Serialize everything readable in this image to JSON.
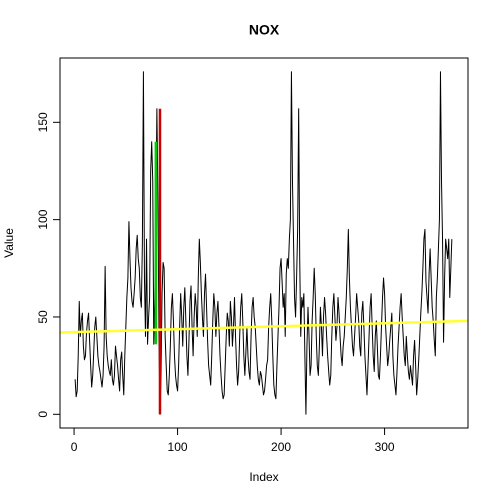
{
  "chart_data": {
    "type": "line",
    "title": "NOX",
    "x_label": "Index",
    "y_label": "Value",
    "xlim": [
      -13.6,
      380.6
    ],
    "ylim": [
      -7.04,
      183.04
    ],
    "xticks": [
      0,
      100,
      200,
      300
    ],
    "yticks": [
      0,
      50,
      100,
      150
    ],
    "series": [
      {
        "color": "#000000",
        "values": [
          18,
          9,
          12,
          30,
          58,
          40,
          48,
          52,
          35,
          28,
          30,
          42,
          48,
          52,
          38,
          25,
          14,
          20,
          32,
          45,
          50,
          40,
          30,
          25,
          22,
          18,
          14,
          20,
          35,
          76,
          40,
          30,
          25,
          22,
          20,
          28,
          18,
          15,
          20,
          35,
          30,
          25,
          18,
          12,
          28,
          32,
          20,
          10,
          30,
          45,
          60,
          70,
          99,
          80,
          65,
          58,
          55,
          62,
          70,
          85,
          92,
          80,
          75,
          60,
          55,
          88,
          176,
          70,
          40,
          90,
          36,
          50,
          60,
          125,
          140,
          120,
          36,
          60,
          100,
          157,
          110,
          40,
          0,
          20,
          62,
          78,
          75,
          40,
          25,
          12,
          10,
          20,
          35,
          55,
          62,
          48,
          30,
          20,
          15,
          12,
          25,
          45,
          62,
          50,
          35,
          55,
          65,
          48,
          30,
          20,
          38,
          58,
          66,
          45,
          30,
          50,
          62,
          55,
          40,
          70,
          90,
          78,
          62,
          50,
          40,
          62,
          72,
          55,
          38,
          25,
          20,
          15,
          30,
          48,
          62,
          55,
          40,
          52,
          58,
          45,
          30,
          20,
          12,
          8,
          10,
          25,
          40,
          52,
          48,
          35,
          58,
          50,
          35,
          45,
          60,
          40,
          25,
          15,
          22,
          40,
          55,
          62,
          48,
          30,
          20,
          32,
          45,
          30,
          22,
          18,
          40,
          55,
          60,
          50,
          45,
          35,
          25,
          18,
          15,
          22,
          20,
          15,
          10,
          12,
          18,
          25,
          28,
          45,
          55,
          62,
          48,
          30,
          15,
          10,
          8,
          25,
          40,
          55,
          75,
          80,
          68,
          55,
          62,
          40,
          72,
          80,
          75,
          90,
          100,
          176,
          120,
          90,
          60,
          50,
          70,
          95,
          157,
          80,
          40,
          60,
          55,
          62,
          30,
          0,
          35,
          55,
          40,
          20,
          25,
          48,
          60,
          75,
          62,
          40,
          25,
          20,
          35,
          55,
          45,
          30,
          50,
          60,
          52,
          40,
          30,
          22,
          15,
          20,
          40,
          55,
          62,
          50,
          38,
          45,
          60,
          52,
          40,
          30,
          25,
          35,
          40,
          50,
          60,
          75,
          95,
          70,
          55,
          45,
          35,
          30,
          40,
          50,
          62,
          55,
          48,
          35,
          30,
          52,
          58,
          45,
          30,
          20,
          10,
          25,
          40,
          55,
          62,
          45,
          30,
          22,
          40,
          48,
          35,
          20,
          18,
          30,
          45,
          60,
          70,
          62,
          45,
          35,
          25,
          30,
          38,
          45,
          52,
          30,
          20,
          15,
          10,
          22,
          35,
          45,
          55,
          62,
          50,
          40,
          30,
          25,
          40,
          30,
          22,
          18,
          25,
          20,
          15,
          30,
          38,
          25,
          10,
          18,
          28,
          40,
          52,
          62,
          75,
          90,
          95,
          68,
          60,
          52,
          72,
          85,
          70,
          55,
          48,
          38,
          30,
          60,
          70,
          85,
          100,
          176,
          120,
          90,
          37,
          70,
          90,
          85,
          80,
          90,
          60,
          75,
          90
        ]
      },
      {
        "color": "#00cc00",
        "x": [
          79,
          79
        ],
        "values": [
          36,
          140
        ]
      },
      {
        "color": "#cc0000",
        "x": [
          83,
          83
        ],
        "values": [
          157,
          0
        ]
      },
      {
        "color": "#ffff33",
        "x": [
          -13.6,
          380.6
        ],
        "values": [
          42,
          48
        ]
      }
    ]
  }
}
